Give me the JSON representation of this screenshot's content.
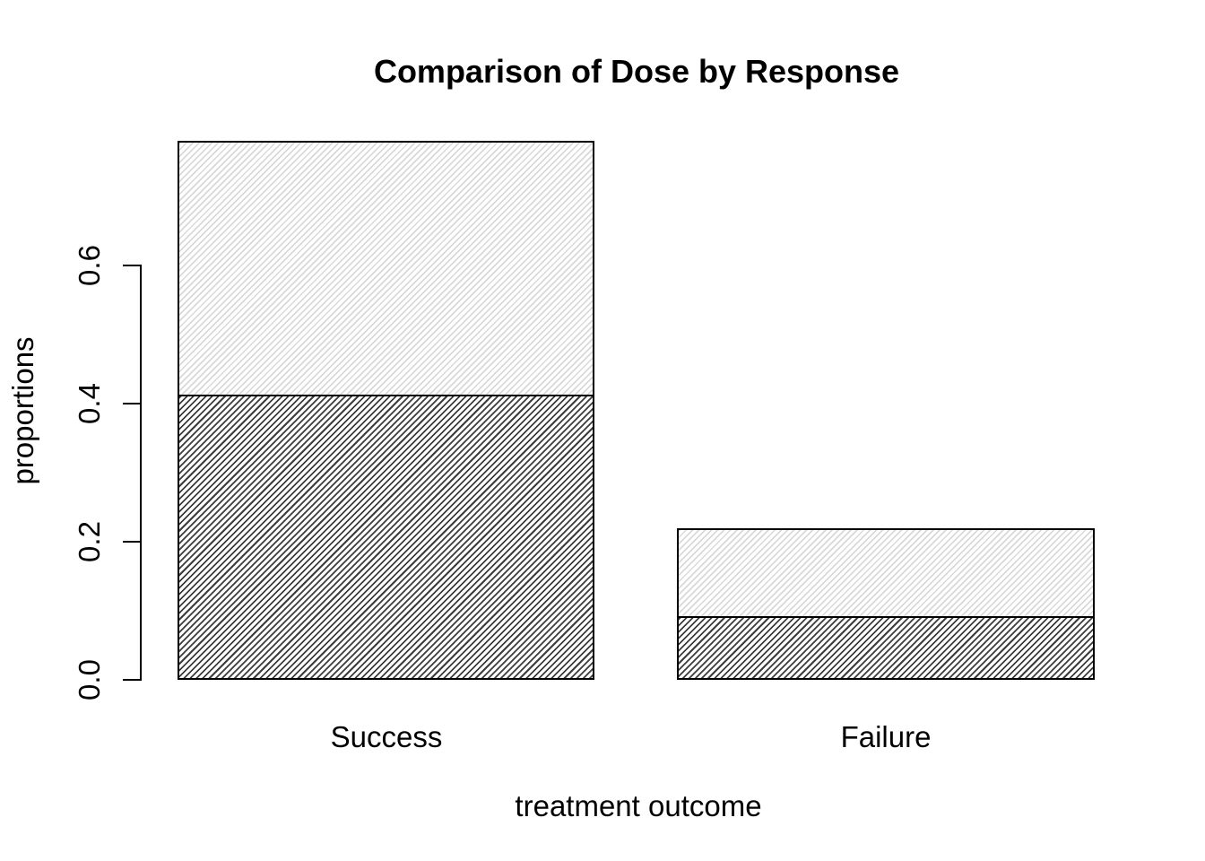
{
  "chart_data": {
    "type": "bar",
    "stacked": true,
    "title": "Comparison of Dose by Response",
    "xlabel": "treatment outcome",
    "ylabel": "proportions",
    "categories": [
      "Success",
      "Failure"
    ],
    "series": [
      {
        "hatch": "dark-diagonal-bottom-segment",
        "values": [
          0.41,
          0.09
        ]
      },
      {
        "hatch": "light-diagonal-top-segment",
        "values": [
          0.37,
          0.13
        ]
      }
    ],
    "totals": [
      0.78,
      0.22
    ],
    "yticks": [
      "0.0",
      "0.2",
      "0.4",
      "0.6"
    ],
    "ylim": [
      0,
      0.78
    ],
    "grid": false,
    "legend": "none",
    "colors": {
      "background": "#ffffff",
      "text": "#000000",
      "bar_border": "#000000",
      "dark_hatch": "#3d3d3d",
      "light_hatch": "#d9d9d9"
    }
  }
}
